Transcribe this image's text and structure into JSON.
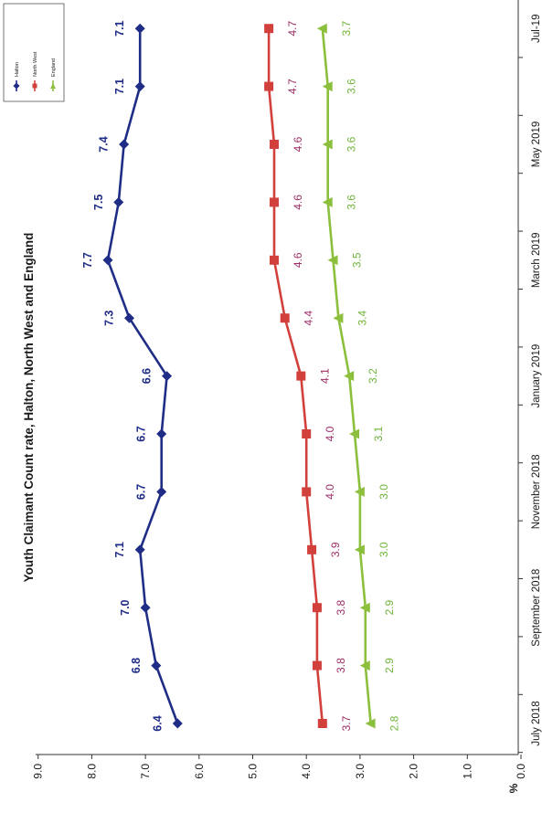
{
  "chart_data": {
    "type": "line",
    "title": "Youth Claimant Count rate, Halton, North West and England",
    "xlabel": "",
    "ylabel": "%",
    "ylim": [
      0,
      9
    ],
    "y_ticks": [
      "0.0",
      "1.0",
      "2.0",
      "3.0",
      "4.0",
      "5.0",
      "6.0",
      "7.0",
      "8.0",
      "9.0"
    ],
    "x_tick_labels": [
      "July 2018",
      "September 2018",
      "November 2018",
      "January 2019",
      "March 2019",
      "May 2019",
      "Jul-19"
    ],
    "orientation": "rotated 90 degrees counter-clockwise",
    "grid": false,
    "legend_position": "top-right",
    "series": [
      {
        "name": "Halton",
        "color": "#1f2d87",
        "marker": "diamond",
        "values": [
          6.4,
          6.8,
          7.0,
          7.1,
          6.7,
          6.7,
          6.6,
          7.3,
          7.7,
          7.5,
          7.4,
          7.1,
          7.1
        ],
        "labels": [
          "6.4",
          "6.8",
          "7.0",
          "7.1",
          "6.7",
          "6.7",
          "6.6",
          "7.3",
          "7.7",
          "7.5",
          "7.4",
          "7.1",
          "7.1"
        ]
      },
      {
        "name": "North West",
        "color": "#d2403c",
        "label_color": "#9c2e66",
        "marker": "square",
        "values": [
          3.7,
          3.8,
          3.8,
          3.9,
          4.0,
          4.0,
          4.1,
          4.4,
          4.6,
          4.6,
          4.6,
          4.7,
          4.7
        ],
        "labels": [
          "3.7",
          "3.8",
          "3.8",
          "3.9",
          "4.0",
          "4.0",
          "4.1",
          "4.4",
          "4.6",
          "4.6",
          "4.6",
          "4.7",
          "4.7"
        ]
      },
      {
        "name": "England",
        "color": "#8bbf3c",
        "label_color": "#6fb43a",
        "marker": "triangle",
        "values": [
          2.8,
          2.9,
          2.9,
          3.0,
          3.0,
          3.1,
          3.2,
          3.4,
          3.5,
          3.6,
          3.6,
          3.6,
          3.7
        ],
        "labels": [
          "2.8",
          "2.9",
          "2.9",
          "3.0",
          "3.0",
          "3.1",
          "3.2",
          "3.4",
          "3.5",
          "3.6",
          "3.6",
          "3.6",
          "3.7"
        ]
      }
    ]
  }
}
